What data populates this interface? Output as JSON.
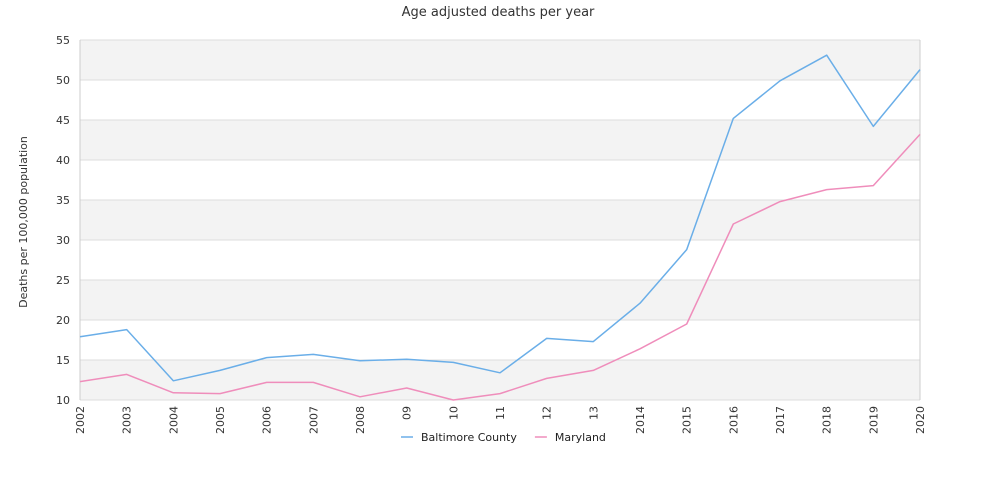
{
  "chart_data": {
    "type": "line",
    "title": "Age adjusted deaths per year",
    "xlabel": "",
    "ylabel": "Deaths per 100,000 population",
    "x": [
      "2002",
      "2003",
      "2004",
      "2005",
      "2006",
      "2007",
      "2008",
      "09",
      "10",
      "11",
      "12",
      "13",
      "2014",
      "2015",
      "2016",
      "2017",
      "2018",
      "2019",
      "2020"
    ],
    "ylim": [
      10,
      55
    ],
    "yticks": [
      10,
      15,
      20,
      25,
      30,
      35,
      40,
      45,
      50,
      55
    ],
    "grid": "horizontal alternating bands",
    "legend_position": "bottom-center",
    "series": [
      {
        "name": "Baltimore County",
        "color": "#6aaee8",
        "values": [
          17.9,
          18.8,
          12.4,
          13.7,
          15.3,
          15.7,
          14.9,
          15.1,
          14.7,
          13.4,
          17.7,
          17.3,
          22.1,
          28.8,
          45.2,
          49.9,
          53.1,
          44.2,
          51.3
        ]
      },
      {
        "name": "Maryland",
        "color": "#ef8dbb",
        "values": [
          12.3,
          13.2,
          10.9,
          10.8,
          12.2,
          12.2,
          10.4,
          11.5,
          10.0,
          10.8,
          12.7,
          13.7,
          16.4,
          19.5,
          32.0,
          34.8,
          36.3,
          36.8,
          43.2
        ]
      }
    ],
    "band_color": "#f3f3f3",
    "grid_line_color": "#dddddd"
  }
}
